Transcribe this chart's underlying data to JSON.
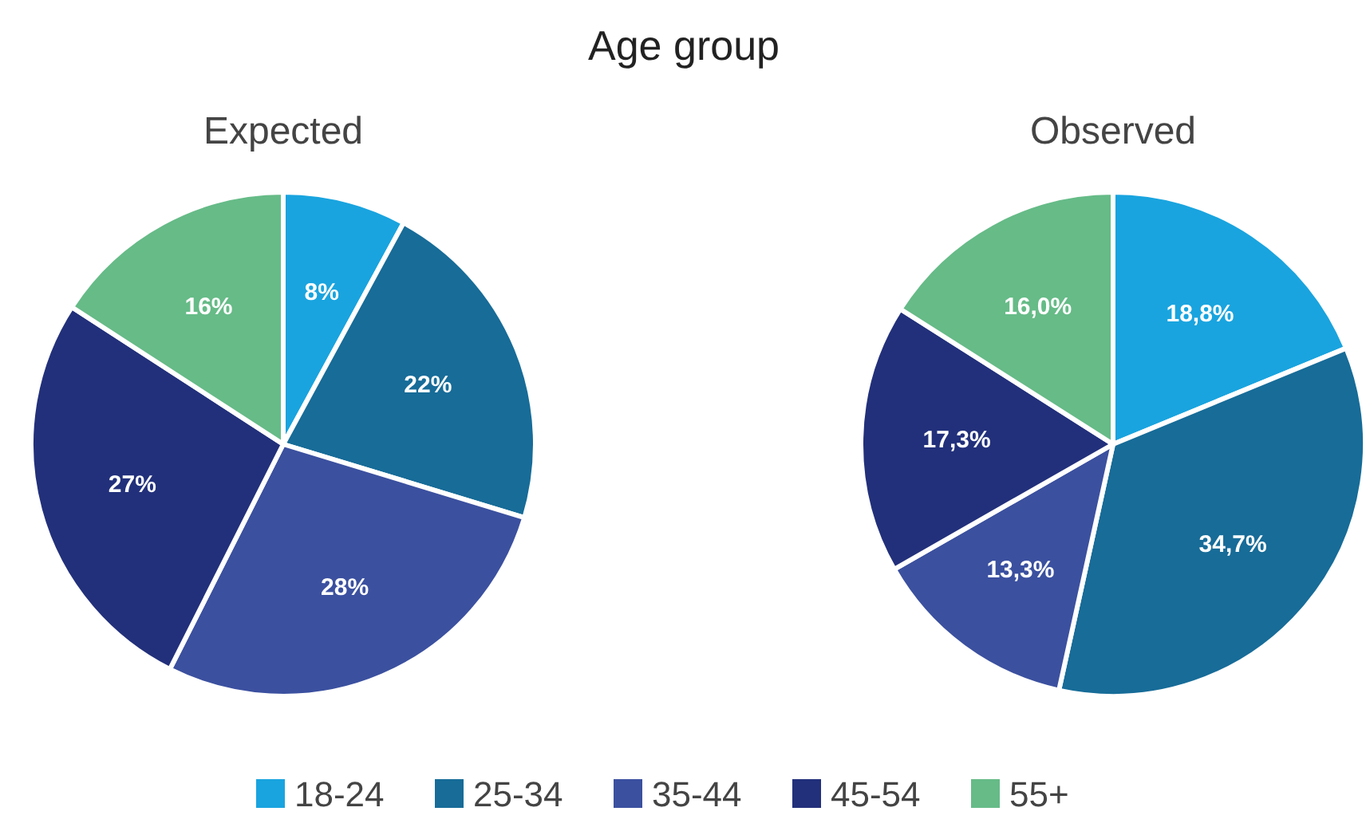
{
  "chart_data": {
    "type": "pie",
    "title": "Age group",
    "categories": [
      "18-24",
      "25-34",
      "35-44",
      "45-54",
      "55+"
    ],
    "colors": [
      "#19a4df",
      "#176c98",
      "#3b509f",
      "#22307b",
      "#66bb87"
    ],
    "legend": "bottom",
    "series": [
      {
        "name": "Expected",
        "values": [
          8,
          22,
          28,
          27,
          16
        ],
        "value_labels": [
          "8%",
          "22%",
          "28%",
          "27%",
          "16%"
        ]
      },
      {
        "name": "Observed",
        "values": [
          18.8,
          34.7,
          13.3,
          17.3,
          16.0
        ],
        "value_labels": [
          "18,8%",
          "34,7%",
          "13,3%",
          "17,3%",
          "16,0%"
        ]
      }
    ]
  }
}
